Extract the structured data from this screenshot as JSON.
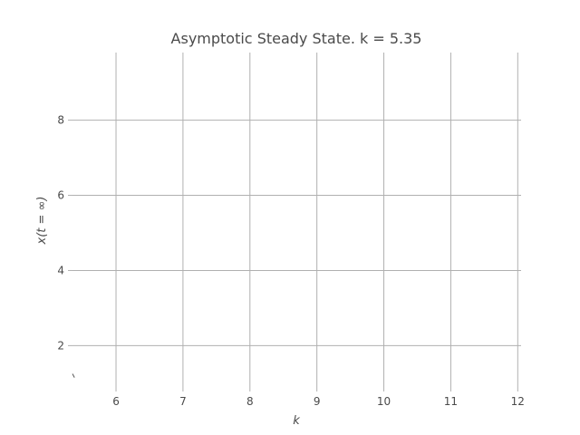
{
  "chart_data": {
    "type": "line",
    "title": "Asymptotic Steady State. k = 5.35",
    "xlabel": "k",
    "ylabel": "x(t = ∞)",
    "xlim": [
      5.35,
      12.05
    ],
    "ylim": [
      0.9,
      9.8
    ],
    "xticks": [
      6,
      7,
      8,
      9,
      10,
      11,
      12
    ],
    "yticks": [
      2,
      4,
      6,
      8
    ],
    "grid": true,
    "series": [
      {
        "x": [
          5.35,
          5.38
        ],
        "y": [
          1.25,
          1.15
        ]
      }
    ]
  }
}
